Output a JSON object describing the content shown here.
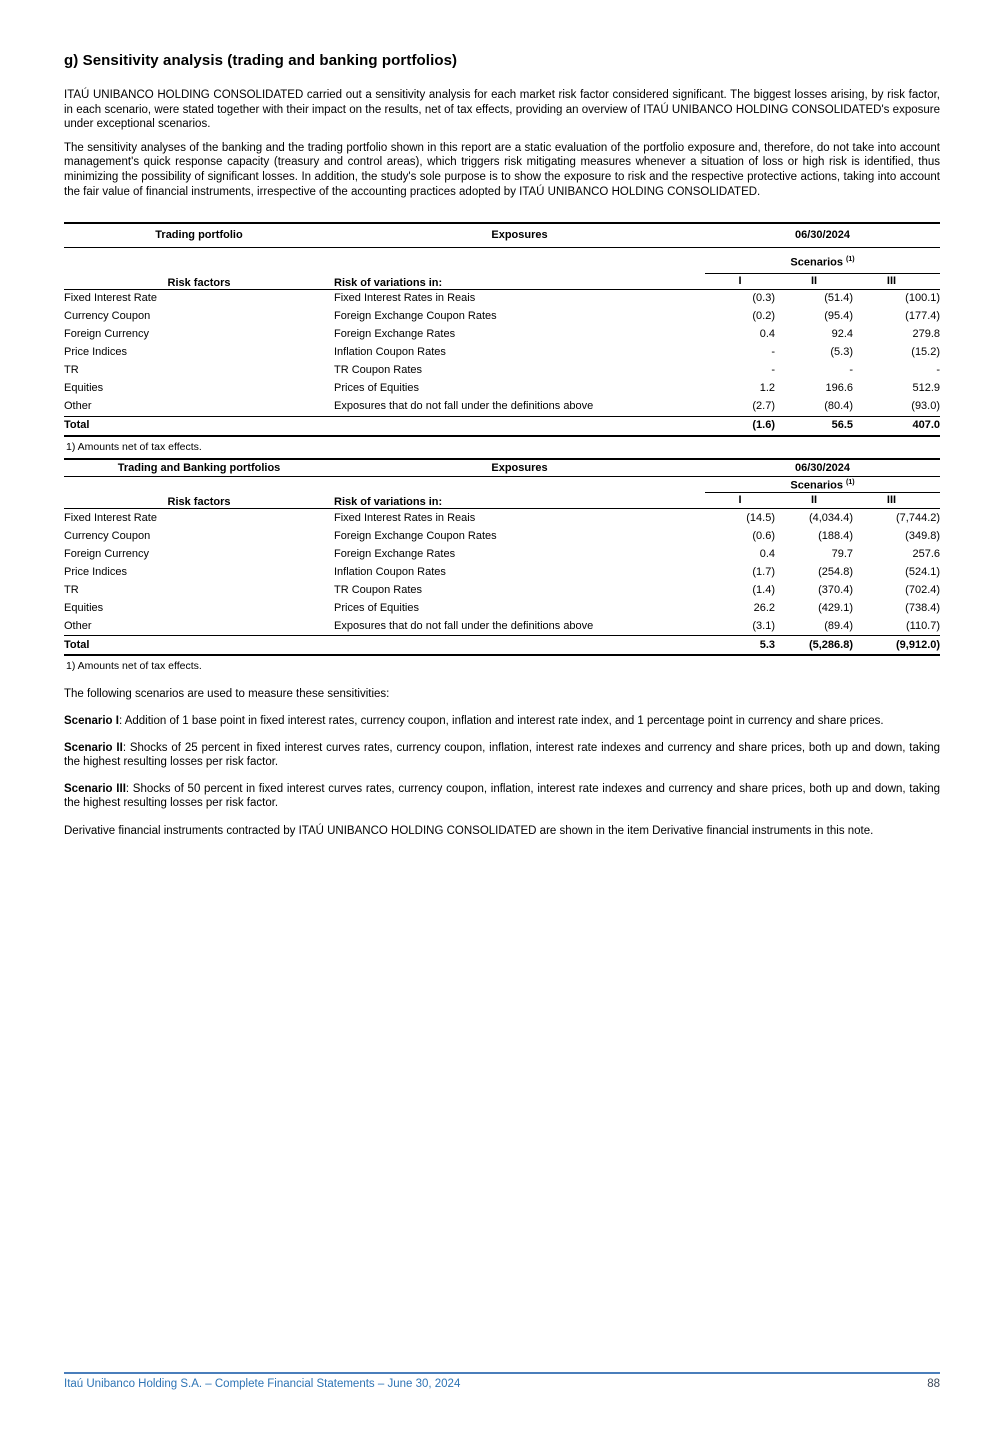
{
  "page": {
    "title": "g) Sensitivity analysis (trading and banking portfolios)",
    "accent_colors": {
      "footer_rule": "#4a7ebb",
      "footer_text": "#2e74b5",
      "page_number_text": "#3c4859"
    }
  },
  "intro": {
    "paragraph1": "ITAÚ UNIBANCO HOLDING CONSOLIDATED carried out a sensitivity analysis for each market risk factor considered significant. The biggest losses arising, by risk factor, in each scenario, were stated together with their impact on the results, net of tax effects, providing an overview of ITAÚ UNIBANCO HOLDING CONSOLIDATED's exposure under exceptional scenarios.",
    "paragraph2": "The sensitivity analyses of the banking and the trading portfolio shown in this report are a static evaluation of the portfolio exposure and, therefore, do not take into account management's quick response capacity (treasury and control areas), which triggers risk mitigating measures whenever a situation of loss or high risk is identified, thus minimizing the possibility of significant losses. In addition, the study's sole purpose is to show the exposure to risk and the respective protective actions, taking into account the fair value of financial instruments, irrespective of the accounting practices adopted by ITAÚ UNIBANCO HOLDING CONSOLIDATED."
  },
  "tables": [
    {
      "portfolio_header": "Trading portfolio",
      "exposures_header": "Exposures",
      "date_header": "06/30/2024",
      "risk_factors_header": "Risk factors",
      "variations_header": "Risk of variations in:",
      "scenarios_header": "Scenarios ",
      "scenarios_ref": "(1)",
      "scenario_columns": [
        "I",
        "II",
        "III"
      ],
      "rows": [
        {
          "factor": "Fixed Interest Rate",
          "variation": "Fixed Interest Rates in Reais",
          "s1": "(0.3)",
          "s2": "(51.4)",
          "s3": "(100.1)"
        },
        {
          "factor": "Currency Coupon",
          "variation": "Foreign Exchange Coupon Rates",
          "s1": "(0.2)",
          "s2": "(95.4)",
          "s3": "(177.4)"
        },
        {
          "factor": "Foreign Currency",
          "variation": "Foreign Exchange Rates",
          "s1": "0.4",
          "s2": "92.4",
          "s3": "279.8"
        },
        {
          "factor": "Price Indices",
          "variation": "Inflation Coupon Rates",
          "s1": "-",
          "s2": "(5.3)",
          "s3": "(15.2)"
        },
        {
          "factor": "TR",
          "variation": "TR Coupon Rates",
          "s1": "-",
          "s2": "-",
          "s3": "-"
        },
        {
          "factor": "Equities",
          "variation": "Prices of Equities",
          "s1": "1.2",
          "s2": "196.6",
          "s3": "512.9"
        },
        {
          "factor": "Other",
          "variation": "Exposures that do not fall under the definitions above",
          "s1": "(2.7)",
          "s2": "(80.4)",
          "s3": "(93.0)"
        }
      ],
      "total": {
        "label": "Total",
        "s1": "(1.6)",
        "s2": "56.5",
        "s3": "407.0"
      },
      "footnote": "1) Amounts net of tax effects."
    },
    {
      "portfolio_header": "Trading and Banking portfolios",
      "exposures_header": "Exposures",
      "date_header": "06/30/2024",
      "risk_factors_header": "Risk factors",
      "variations_header": "Risk of variations in:",
      "scenarios_header": "Scenarios ",
      "scenarios_ref": "(1)",
      "scenario_columns": [
        "I",
        "II",
        "III"
      ],
      "rows": [
        {
          "factor": "Fixed Interest Rate",
          "variation": "Fixed Interest Rates in Reais",
          "s1": "(14.5)",
          "s2": "(4,034.4)",
          "s3": "(7,744.2)"
        },
        {
          "factor": "Currency Coupon",
          "variation": "Foreign Exchange Coupon Rates",
          "s1": "(0.6)",
          "s2": "(188.4)",
          "s3": "(349.8)"
        },
        {
          "factor": "Foreign Currency",
          "variation": "Foreign Exchange Rates",
          "s1": "0.4",
          "s2": "79.7",
          "s3": "257.6"
        },
        {
          "factor": "Price Indices",
          "variation": "Inflation Coupon Rates",
          "s1": "(1.7)",
          "s2": "(254.8)",
          "s3": "(524.1)"
        },
        {
          "factor": "TR",
          "variation": "TR Coupon Rates",
          "s1": "(1.4)",
          "s2": "(370.4)",
          "s3": "(702.4)"
        },
        {
          "factor": "Equities",
          "variation": "Prices of Equities",
          "s1": "26.2",
          "s2": "(429.1)",
          "s3": "(738.4)"
        },
        {
          "factor": "Other",
          "variation": "Exposures that do not fall under the definitions above",
          "s1": "(3.1)",
          "s2": "(89.4)",
          "s3": "(110.7)"
        }
      ],
      "total": {
        "label": "Total",
        "s1": "5.3",
        "s2": "(5,286.8)",
        "s3": "(9,912.0)"
      },
      "footnote": "1) Amounts net of tax effects."
    }
  ],
  "scenarios_section": {
    "intro": "The following scenarios are used to measure these sensitivities:",
    "items": [
      {
        "label": "Scenario I",
        "text": ": Addition of 1 base point in fixed interest rates, currency coupon, inflation and interest rate index, and 1 percentage point in currency and share prices."
      },
      {
        "label": "Scenario II",
        "text": ": Shocks of 25 percent in fixed interest curves rates, currency coupon, inflation, interest rate indexes and currency and share prices, both up and down, taking the highest resulting losses per risk factor."
      },
      {
        "label": "Scenario III",
        "text": ": Shocks of 50 percent in fixed interest curves rates, currency coupon, inflation, interest rate indexes and currency and share prices, both up and down, taking the highest resulting losses per risk factor."
      }
    ],
    "derivative_note": "Derivative financial instruments contracted by ITAÚ UNIBANCO HOLDING CONSOLIDATED are shown in the item Derivative financial instruments in this note."
  },
  "footer": {
    "left_text": "Itaú Unibanco Holding S.A. – Complete Financial Statements – June 30, 2024",
    "page_number": "88"
  }
}
